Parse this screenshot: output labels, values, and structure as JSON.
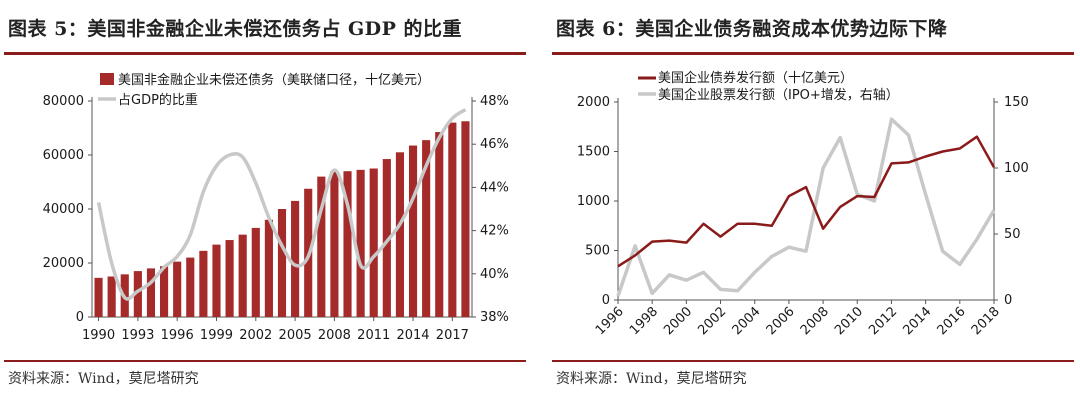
{
  "left": {
    "title": "图表 5：美国非金融企业未偿还债务占 GDP 的比重",
    "source": "资料来源：Wind，莫尼塔研究"
  },
  "right": {
    "title": "图表 6：美国企业债务融资成本优势边际下降",
    "source": "资料来源：Wind，莫尼塔研究"
  },
  "colors": {
    "accent": "#8b1c1c",
    "bar": "#a52a2a",
    "gray": "#c8c8c8",
    "maroon": "#8b1a1a"
  },
  "chart_data": [
    {
      "type": "bar",
      "categories": [
        "1990",
        "1991",
        "1992",
        "1993",
        "1994",
        "1995",
        "1996",
        "1997",
        "1998",
        "1999",
        "2000",
        "2001",
        "2002",
        "2003",
        "2004",
        "2005",
        "2006",
        "2007",
        "2008",
        "2009",
        "2010",
        "2011",
        "2012",
        "2013",
        "2014",
        "2015",
        "2016",
        "2017",
        "2018"
      ],
      "x_tick_labels": [
        "1990",
        "1993",
        "1996",
        "1999",
        "2002",
        "2005",
        "2008",
        "2011",
        "2014",
        "2017"
      ],
      "y_left_ticks": [
        "0",
        "20000",
        "40000",
        "60000",
        "80000"
      ],
      "y_right_ticks": [
        "38%",
        "40%",
        "42%",
        "44%",
        "46%",
        "48%"
      ],
      "ylim_left": [
        0,
        80000
      ],
      "ylim_right": [
        38,
        48
      ],
      "series": [
        {
          "name": "美国非金融企业未偿还债务（美联储口径，十亿美元）",
          "type": "bar",
          "axis": "left",
          "values": [
            14500,
            15000,
            15800,
            17000,
            18000,
            18800,
            20500,
            22000,
            24500,
            26800,
            28500,
            30500,
            33000,
            36000,
            40000,
            43000,
            47500,
            52000,
            54000,
            54000,
            54500,
            55000,
            58500,
            61000,
            63500,
            65500,
            68500,
            72000,
            72500
          ]
        },
        {
          "name": "占GDP的比重",
          "type": "line",
          "axis": "right",
          "values": [
            43.3,
            40.5,
            38.9,
            39.2,
            39.6,
            40.3,
            40.8,
            41.8,
            43.8,
            45.0,
            45.5,
            45.4,
            44.2,
            42.6,
            41.3,
            40.4,
            40.8,
            43.0,
            44.8,
            43.2,
            40.4,
            40.8,
            41.5,
            42.3,
            43.5,
            45.0,
            46.3,
            47.2,
            47.6
          ]
        }
      ],
      "grid": false,
      "legend": "top-left"
    },
    {
      "type": "line",
      "x": [
        "1996",
        "1997",
        "1998",
        "1999",
        "2000",
        "2001",
        "2002",
        "2003",
        "2004",
        "2005",
        "2006",
        "2007",
        "2008",
        "2009",
        "2010",
        "2011",
        "2012",
        "2013",
        "2014",
        "2015",
        "2016",
        "2017",
        "2018"
      ],
      "x_tick_labels": [
        "1996",
        "1998",
        "2000",
        "2002",
        "2004",
        "2006",
        "2008",
        "2010",
        "2012",
        "2014",
        "2016",
        "2018"
      ],
      "y_left_ticks": [
        "0",
        "500",
        "1000",
        "1500",
        "2000"
      ],
      "y_right_ticks": [
        "0",
        "50",
        "100",
        "150"
      ],
      "ylim_left": [
        0,
        2000
      ],
      "ylim_right": [
        0,
        150
      ],
      "series": [
        {
          "name": "美国企业债券发行额（十亿美元）",
          "axis": "left",
          "values": [
            340,
            450,
            590,
            600,
            580,
            770,
            640,
            770,
            770,
            750,
            1050,
            1140,
            720,
            940,
            1050,
            1040,
            1380,
            1390,
            1450,
            1500,
            1530,
            1650,
            1340
          ]
        },
        {
          "name": "美国企业股票发行额（IPO+增发，右轴）",
          "axis": "right",
          "values": [
            3,
            41,
            5,
            19,
            15,
            21,
            8,
            7,
            21,
            33,
            40,
            37,
            100,
            123,
            80,
            75,
            137,
            125,
            80,
            37,
            27,
            46,
            68
          ]
        }
      ],
      "grid": false,
      "legend": "top-left"
    }
  ]
}
